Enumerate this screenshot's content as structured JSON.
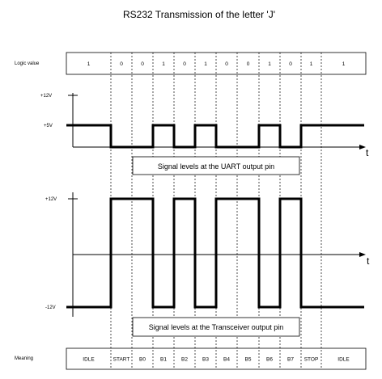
{
  "title": "RS232 Transmission of the letter 'J'",
  "logic_label": "Logic value",
  "logic_values": [
    "1",
    "0",
    "0",
    "1",
    "0",
    "1",
    "0",
    "0",
    "1",
    "0",
    "1",
    "1"
  ],
  "meaning_label": "Meaning",
  "meanings": [
    "IDLE",
    "START",
    "B0",
    "B1",
    "B2",
    "B3",
    "B4",
    "B5",
    "B6",
    "B7",
    "STOP",
    "IDLE"
  ],
  "uart": {
    "ticks": [
      "+12V",
      "+5V"
    ],
    "caption": "Signal levels at the UART output pin",
    "time_label": "t"
  },
  "transceiver": {
    "ticks": [
      "+12V",
      "-12V"
    ],
    "caption": "Signal levels at the Transceiver output pin",
    "time_label": "t"
  }
}
